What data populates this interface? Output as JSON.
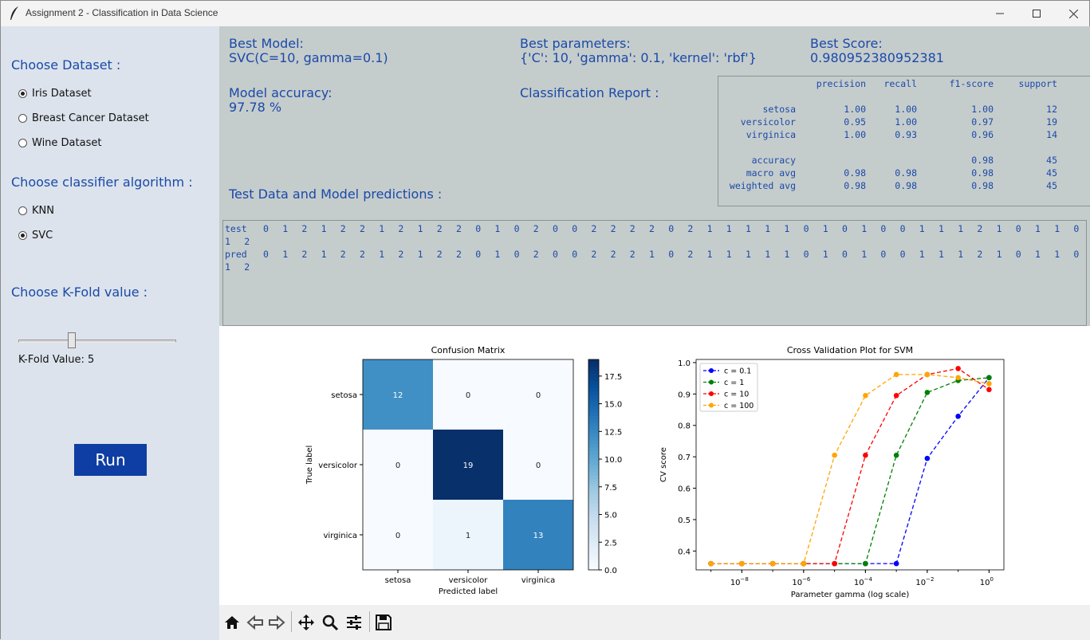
{
  "window": {
    "title": "Assignment 2 - Classification in Data Science"
  },
  "left": {
    "dataset_heading": "Choose Dataset :",
    "datasets": [
      "Iris Dataset",
      "Breast Cancer Dataset",
      "Wine Dataset"
    ],
    "selected_dataset": 0,
    "classifier_heading": "Choose classifier algorithm :",
    "classifiers": [
      "KNN",
      "SVC"
    ],
    "selected_classifier": 1,
    "kfold_heading": "Choose K-Fold value :",
    "kfold_value_text": "K-Fold Value: 5",
    "kfold_slider_level": 5,
    "run_label": "Run"
  },
  "results": {
    "best_model_label": "Best Model:",
    "best_model_value": "SVC(C=10, gamma=0.1)",
    "best_params_label": "Best parameters:",
    "best_params_value": "{'C': 10, 'gamma': 0.1, 'kernel': 'rbf'}",
    "best_score_label": "Best Score:",
    "best_score_value": "0.980952380952381",
    "accuracy_label": "Model accuracy:",
    "accuracy_value": "97.78 %",
    "report_label": "Classification Report :",
    "test_pred_label": "Test Data and Model predictions :"
  },
  "report": {
    "headers": [
      "precision",
      "recall",
      "f1-score",
      "support"
    ],
    "rows": [
      {
        "label": "setosa",
        "vals": [
          "1.00",
          "1.00",
          "1.00",
          "12"
        ]
      },
      {
        "label": "versicolor",
        "vals": [
          "0.95",
          "1.00",
          "0.97",
          "19"
        ]
      },
      {
        "label": "virginica",
        "vals": [
          "1.00",
          "0.93",
          "0.96",
          "14"
        ]
      },
      {
        "label": "accuracy",
        "vals": [
          "",
          "",
          "0.98",
          "45"
        ]
      },
      {
        "label": "macro avg",
        "vals": [
          "0.98",
          "0.98",
          "0.98",
          "45"
        ]
      },
      {
        "label": "weighted avg",
        "vals": [
          "0.98",
          "0.98",
          "0.98",
          "45"
        ]
      }
    ]
  },
  "predictions": {
    "test_label": "test",
    "pred_label": "pred",
    "test": [
      0,
      1,
      2,
      1,
      2,
      2,
      1,
      2,
      1,
      2,
      2,
      0,
      1,
      0,
      2,
      0,
      0,
      2,
      2,
      2,
      2,
      0,
      2,
      1,
      1,
      1,
      1,
      1,
      0,
      1,
      0,
      1,
      0,
      0,
      1,
      1,
      1,
      2,
      1,
      0,
      1,
      1,
      0,
      1,
      2
    ],
    "pred": [
      0,
      1,
      2,
      1,
      2,
      2,
      1,
      2,
      1,
      2,
      2,
      0,
      1,
      0,
      2,
      0,
      0,
      2,
      2,
      2,
      1,
      0,
      2,
      1,
      1,
      1,
      1,
      1,
      0,
      1,
      0,
      1,
      0,
      0,
      1,
      1,
      1,
      2,
      1,
      0,
      1,
      1,
      0,
      1,
      2
    ]
  },
  "chart_data": [
    {
      "type": "heatmap",
      "title": "Confusion Matrix",
      "xlabel": "Predicted label",
      "ylabel": "True label",
      "x_categories": [
        "setosa",
        "versicolor",
        "virginica"
      ],
      "y_categories": [
        "setosa",
        "versicolor",
        "virginica"
      ],
      "values": [
        [
          12,
          0,
          0
        ],
        [
          0,
          19,
          0
        ],
        [
          0,
          1,
          13
        ]
      ],
      "colorbar_ticks": [
        "0.0",
        "2.5",
        "5.0",
        "7.5",
        "10.0",
        "12.5",
        "15.0",
        "17.5"
      ],
      "colorbar_range": [
        0,
        19
      ]
    },
    {
      "type": "line",
      "title": "Cross Validation Plot for SVM",
      "xlabel": "Parameter gamma (log scale)",
      "ylabel": "CV score",
      "x_scale": "log",
      "x": [
        1e-09,
        1e-08,
        1e-07,
        1e-06,
        1e-05,
        0.0001,
        0.001,
        0.01,
        0.1,
        1
      ],
      "x_ticks": [
        {
          "exp": "−8",
          "value": 1e-08
        },
        {
          "exp": "−6",
          "value": 1e-06
        },
        {
          "exp": "−4",
          "value": 0.0001
        },
        {
          "exp": "−2",
          "value": 0.01
        },
        {
          "exp": "0",
          "value": 1
        }
      ],
      "y_ticks": [
        "0.4",
        "0.5",
        "0.6",
        "0.7",
        "0.8",
        "0.9",
        "1.0"
      ],
      "ylim": [
        0.34,
        1.01
      ],
      "legend_position": "top-left",
      "series": [
        {
          "name": "c = 0.1",
          "color": "#0000ff",
          "values": [
            0.36,
            0.36,
            0.36,
            0.36,
            0.36,
            0.36,
            0.36,
            0.695,
            0.829,
            0.952
          ]
        },
        {
          "name": "c = 1",
          "color": "#008000",
          "values": [
            0.36,
            0.36,
            0.36,
            0.36,
            0.36,
            0.36,
            0.705,
            0.905,
            0.943,
            0.952
          ]
        },
        {
          "name": "c = 10",
          "color": "#ff0000",
          "values": [
            0.36,
            0.36,
            0.36,
            0.36,
            0.36,
            0.705,
            0.895,
            0.962,
            0.981,
            0.914
          ]
        },
        {
          "name": "c = 100",
          "color": "#ffa500",
          "values": [
            0.36,
            0.36,
            0.36,
            0.36,
            0.705,
            0.895,
            0.962,
            0.962,
            0.952,
            0.933
          ]
        }
      ]
    }
  ]
}
